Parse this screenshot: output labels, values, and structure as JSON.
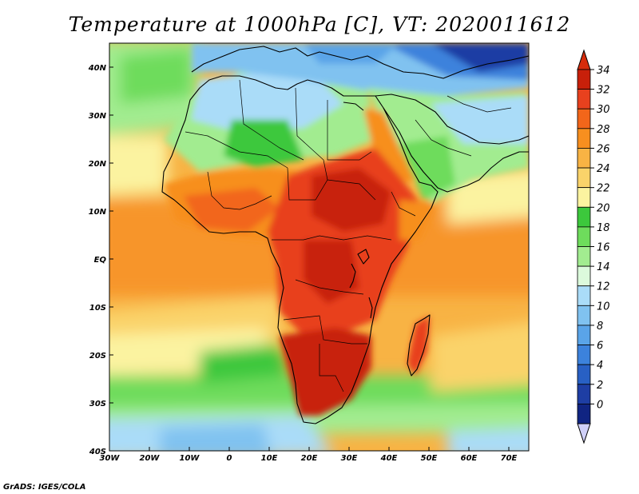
{
  "title": "Temperature at 1000hPa [C], VT: 2020011612",
  "credit": "GrADS: IGES/COLA",
  "map": {
    "lon_range": [
      -30,
      75
    ],
    "lat_range": [
      -40,
      45
    ],
    "lon_ticks": [
      {
        "value": -30,
        "label": "30W"
      },
      {
        "value": -20,
        "label": "20W"
      },
      {
        "value": -10,
        "label": "10W"
      },
      {
        "value": 0,
        "label": "0"
      },
      {
        "value": 10,
        "label": "10E"
      },
      {
        "value": 20,
        "label": "20E"
      },
      {
        "value": 30,
        "label": "30E"
      },
      {
        "value": 40,
        "label": "40E"
      },
      {
        "value": 50,
        "label": "50E"
      },
      {
        "value": 60,
        "label": "60E"
      },
      {
        "value": 70,
        "label": "70E"
      }
    ],
    "lat_ticks": [
      {
        "value": 40,
        "label": "40N"
      },
      {
        "value": 30,
        "label": "30N"
      },
      {
        "value": 20,
        "label": "20N"
      },
      {
        "value": 10,
        "label": "10N"
      },
      {
        "value": 0,
        "label": "EQ"
      },
      {
        "value": -10,
        "label": "10S"
      },
      {
        "value": -20,
        "label": "20S"
      },
      {
        "value": -30,
        "label": "30S"
      },
      {
        "value": -40,
        "label": "40S"
      }
    ]
  },
  "colorbar": {
    "levels": [
      "34",
      "32",
      "30",
      "28",
      "26",
      "24",
      "22",
      "20",
      "18",
      "16",
      "14",
      "12",
      "10",
      "8",
      "6",
      "4",
      "2",
      "0"
    ],
    "colors": [
      "#c8200a",
      "#e8411e",
      "#f2661a",
      "#f78f1f",
      "#f8b344",
      "#fad36a",
      "#fbf3a0",
      "#3cc83c",
      "#6edc5c",
      "#a2ec90",
      "#dcfadc",
      "#aadcf8",
      "#80c2f0",
      "#5aa4e8",
      "#3c82dc",
      "#2860c4",
      "#1e3ea4",
      "#102482"
    ],
    "top_arrow_color": "#d62c0c",
    "bottom_arrow_color": "#d0d0f8"
  }
}
